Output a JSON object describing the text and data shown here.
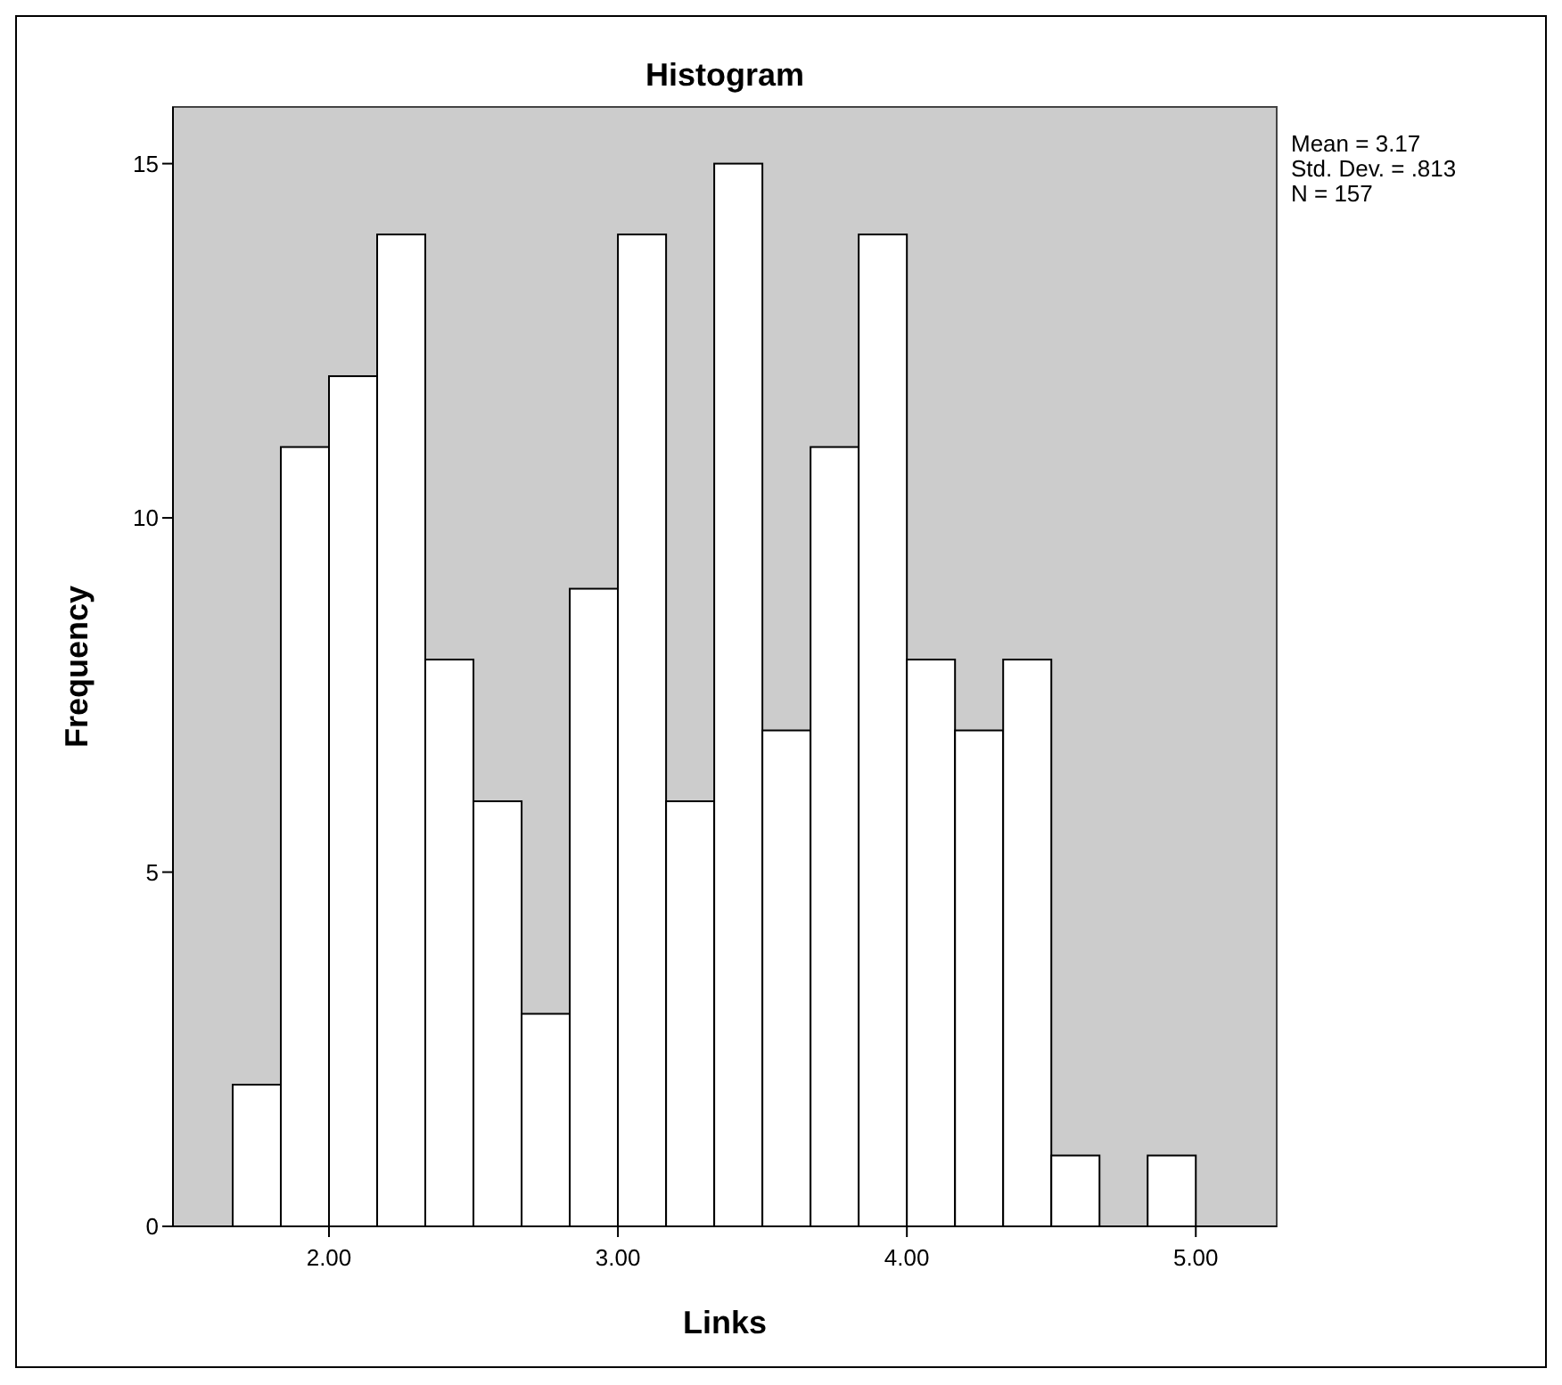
{
  "chart_data": {
    "type": "histogram",
    "title": "Histogram",
    "xlabel": "Links",
    "ylabel": "Frequency",
    "bins": [
      1.6667,
      1.8333,
      2,
      2.1667,
      2.3333,
      2.5,
      2.6667,
      2.8333,
      3,
      3.1667,
      3.3333,
      3.5,
      3.6667,
      3.8333,
      4,
      4.1667,
      4.3333,
      4.5,
      4.6667,
      4.8333,
      5
    ],
    "values": [
      2,
      11,
      12,
      14,
      8,
      6,
      3,
      9,
      14,
      6,
      15,
      7,
      11,
      14,
      8,
      7,
      8,
      1,
      0,
      1
    ],
    "color": "#ffffff",
    "xlim": [
      1.46,
      5.28
    ],
    "xticks": [
      {
        "value": 2,
        "label": "2.00"
      },
      {
        "value": 3,
        "label": "3.00"
      },
      {
        "value": 4,
        "label": "4.00"
      },
      {
        "value": 5,
        "label": "5.00"
      }
    ],
    "ylim": [
      0,
      15.8
    ],
    "yticks": [
      0,
      5,
      10,
      15
    ],
    "annotations": [
      "Mean = 3.17",
      "Std. Dev. = .813",
      "N = 157"
    ],
    "grid": false
  }
}
